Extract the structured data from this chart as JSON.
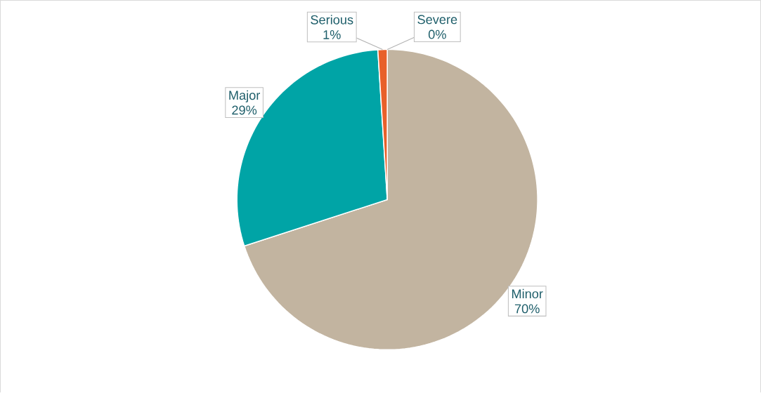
{
  "chart_data": {
    "type": "pie",
    "categories": [
      "Minor",
      "Major",
      "Serious",
      "Severe"
    ],
    "values": [
      70,
      29,
      1,
      0
    ],
    "colors": [
      "#c2b4a0",
      "#00a4a6",
      "#e8602a",
      "#7f7f7f"
    ],
    "value_labels": [
      "70%",
      "29%",
      "1%",
      "0%"
    ]
  }
}
